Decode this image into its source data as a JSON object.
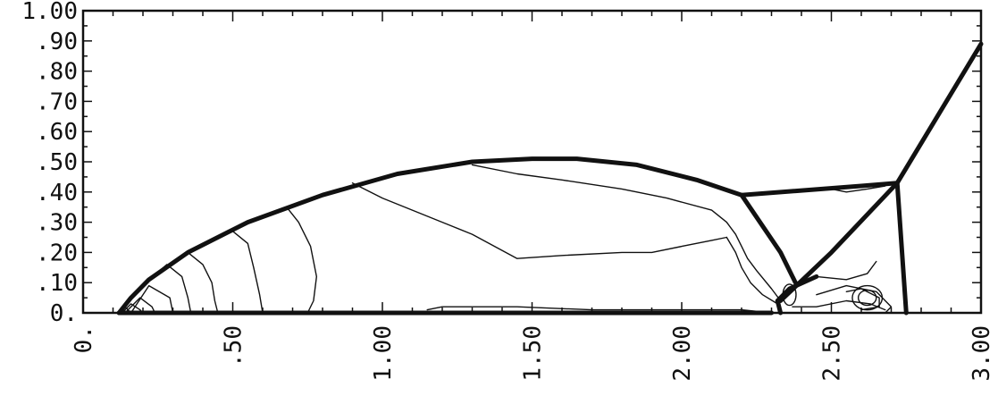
{
  "chart_data": {
    "type": "contour",
    "title": "",
    "xlabel": "",
    "ylabel": "",
    "xlim": [
      0,
      3.0
    ],
    "ylim": [
      0,
      1.0
    ],
    "x_ticks": [
      0,
      0.5,
      1.0,
      1.5,
      2.0,
      2.5,
      3.0
    ],
    "x_tick_labels": [
      "0.",
      ".50",
      "1.00",
      "1.50",
      "2.00",
      "2.50",
      "3.00"
    ],
    "y_ticks": [
      0,
      0.1,
      0.2,
      0.3,
      0.4,
      0.5,
      0.6,
      0.7,
      0.8,
      0.9,
      1.0
    ],
    "y_tick_labels": [
      "0.",
      ".10",
      ".20",
      ".30",
      ".40",
      ".50",
      ".60",
      ".70",
      ".80",
      ".90",
      "1.00"
    ],
    "grid": false,
    "series": [
      {
        "style": "thick",
        "points": [
          [
            0.12,
            0.0
          ],
          [
            0.16,
            0.05
          ],
          [
            0.22,
            0.11
          ],
          [
            0.35,
            0.2
          ],
          [
            0.55,
            0.3
          ],
          [
            0.8,
            0.39
          ],
          [
            1.05,
            0.46
          ],
          [
            1.3,
            0.5
          ],
          [
            1.5,
            0.51
          ],
          [
            1.65,
            0.51
          ],
          [
            1.85,
            0.49
          ],
          [
            2.05,
            0.44
          ],
          [
            2.2,
            0.39
          ]
        ]
      },
      {
        "style": "thick",
        "points": [
          [
            2.2,
            0.39
          ],
          [
            2.6,
            0.42
          ],
          [
            2.72,
            0.43
          ]
        ]
      },
      {
        "style": "thick",
        "points": [
          [
            2.2,
            0.39
          ],
          [
            2.33,
            0.2
          ],
          [
            2.38,
            0.1
          ]
        ]
      },
      {
        "style": "thick",
        "points": [
          [
            2.33,
            0.04
          ],
          [
            2.5,
            0.2
          ],
          [
            2.72,
            0.43
          ]
        ]
      },
      {
        "style": "thick",
        "points": [
          [
            2.72,
            0.43
          ],
          [
            2.75,
            0.0
          ]
        ]
      },
      {
        "style": "thick",
        "points": [
          [
            2.72,
            0.43
          ],
          [
            3.0,
            0.89
          ]
        ]
      },
      {
        "style": "thick",
        "points": [
          [
            0.12,
            0.0
          ],
          [
            0.55,
            0.0
          ],
          [
            1.2,
            0.0
          ],
          [
            1.8,
            0.0
          ],
          [
            2.3,
            0.0
          ]
        ]
      },
      {
        "style": "thick",
        "points": [
          [
            2.33,
            0.0
          ],
          [
            2.32,
            0.04
          ],
          [
            2.36,
            0.08
          ],
          [
            2.45,
            0.12
          ]
        ]
      },
      {
        "style": "thin",
        "points": [
          [
            0.9,
            0.43
          ],
          [
            1.0,
            0.38
          ],
          [
            1.2,
            0.3
          ],
          [
            1.3,
            0.26
          ],
          [
            1.45,
            0.18
          ],
          [
            1.6,
            0.19
          ],
          [
            1.8,
            0.2
          ],
          [
            1.9,
            0.2
          ],
          [
            2.0,
            0.22
          ],
          [
            2.1,
            0.24
          ],
          [
            2.15,
            0.25
          ]
        ]
      },
      {
        "style": "thin",
        "points": [
          [
            1.3,
            0.49
          ],
          [
            1.45,
            0.46
          ],
          [
            1.6,
            0.44
          ],
          [
            1.8,
            0.41
          ],
          [
            1.95,
            0.38
          ],
          [
            2.1,
            0.34
          ],
          [
            2.15,
            0.3
          ],
          [
            2.18,
            0.26
          ],
          [
            2.2,
            0.22
          ],
          [
            2.22,
            0.18
          ],
          [
            2.25,
            0.14
          ],
          [
            2.3,
            0.08
          ],
          [
            2.33,
            0.04
          ]
        ]
      },
      {
        "style": "thin",
        "points": [
          [
            2.15,
            0.25
          ],
          [
            2.18,
            0.2
          ],
          [
            2.2,
            0.15
          ],
          [
            2.23,
            0.1
          ],
          [
            2.27,
            0.06
          ],
          [
            2.32,
            0.03
          ]
        ]
      },
      {
        "style": "thin",
        "points": [
          [
            0.12,
            0.0
          ],
          [
            0.14,
            0.02
          ],
          [
            0.16,
            0.0
          ]
        ]
      },
      {
        "style": "thin",
        "points": [
          [
            0.13,
            0.0
          ],
          [
            0.16,
            0.03
          ],
          [
            0.19,
            0.01
          ],
          [
            0.2,
            0.0
          ]
        ]
      },
      {
        "style": "thin",
        "points": [
          [
            0.14,
            0.0
          ],
          [
            0.19,
            0.05
          ],
          [
            0.23,
            0.02
          ],
          [
            0.24,
            0.0
          ]
        ]
      },
      {
        "style": "thin",
        "points": [
          [
            0.16,
            0.0
          ],
          [
            0.22,
            0.09
          ],
          [
            0.29,
            0.05
          ],
          [
            0.3,
            0.0
          ]
        ]
      },
      {
        "style": "thin",
        "points": [
          [
            0.22,
            0.11
          ],
          [
            0.28,
            0.16
          ],
          [
            0.33,
            0.12
          ],
          [
            0.35,
            0.05
          ],
          [
            0.36,
            0.0
          ]
        ]
      },
      {
        "style": "thin",
        "points": [
          [
            0.35,
            0.2
          ],
          [
            0.4,
            0.16
          ],
          [
            0.43,
            0.1
          ],
          [
            0.44,
            0.04
          ],
          [
            0.45,
            0.0
          ]
        ]
      },
      {
        "style": "thin",
        "points": [
          [
            0.5,
            0.27
          ],
          [
            0.55,
            0.23
          ],
          [
            0.57,
            0.15
          ],
          [
            0.59,
            0.06
          ],
          [
            0.6,
            0.0
          ]
        ]
      },
      {
        "style": "thin",
        "points": [
          [
            0.68,
            0.35
          ],
          [
            0.72,
            0.3
          ],
          [
            0.76,
            0.22
          ],
          [
            0.78,
            0.12
          ],
          [
            0.77,
            0.04
          ],
          [
            0.75,
            0.0
          ]
        ]
      },
      {
        "style": "thin",
        "points": [
          [
            2.45,
            0.06
          ],
          [
            2.55,
            0.09
          ],
          [
            2.65,
            0.07
          ],
          [
            2.7,
            0.02
          ],
          [
            2.68,
            0.0
          ]
        ]
      },
      {
        "style": "thin",
        "points": [
          [
            2.55,
            0.07
          ],
          [
            2.6,
            0.08
          ],
          [
            2.66,
            0.05
          ],
          [
            2.66,
            0.02
          ],
          [
            2.6,
            0.01
          ]
        ]
      },
      {
        "style": "thin",
        "points": [
          [
            2.38,
            0.1
          ],
          [
            2.45,
            0.12
          ],
          [
            2.55,
            0.11
          ],
          [
            2.62,
            0.13
          ],
          [
            2.65,
            0.17
          ]
        ]
      },
      {
        "style": "thin",
        "points": [
          [
            2.37,
            0.02
          ],
          [
            2.45,
            0.02
          ],
          [
            2.55,
            0.04
          ],
          [
            2.63,
            0.03
          ],
          [
            2.68,
            0.01
          ]
        ]
      },
      {
        "style": "thin",
        "points": [
          [
            1.15,
            0.01
          ],
          [
            1.2,
            0.02
          ],
          [
            1.45,
            0.02
          ],
          [
            1.7,
            0.01
          ],
          [
            2.0,
            0.01
          ],
          [
            2.2,
            0.01
          ],
          [
            2.3,
            0.0
          ]
        ]
      },
      {
        "style": "thin",
        "points": [
          [
            2.5,
            0.41
          ],
          [
            2.55,
            0.4
          ],
          [
            2.62,
            0.41
          ],
          [
            2.68,
            0.42
          ]
        ]
      }
    ]
  }
}
